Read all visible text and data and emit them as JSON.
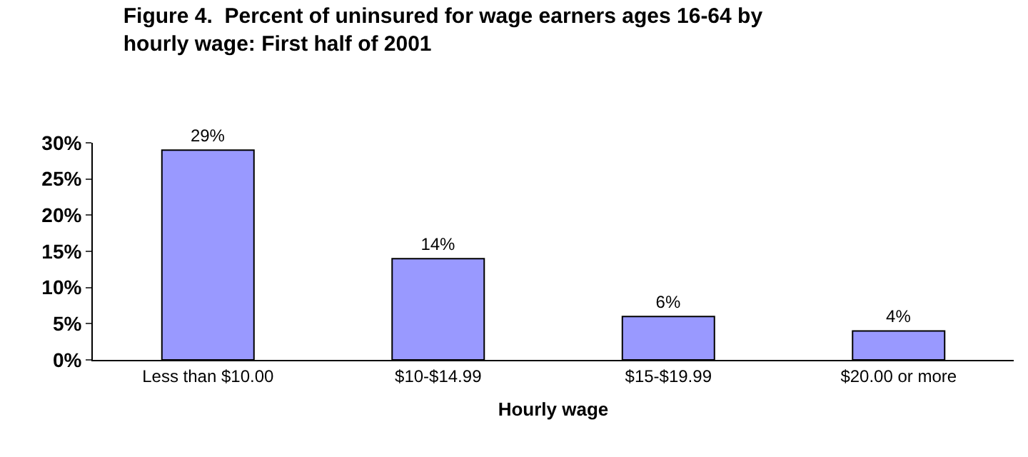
{
  "chart_data": {
    "type": "bar",
    "title": "Figure 4.  Percent of uninsured for wage earners ages 16-64 by hourly wage: First half of 2001",
    "xlabel": "Hourly wage",
    "categories": [
      "Less than $10.00",
      "$10-$14.99",
      "$15-$19.99",
      "$20.00 or more"
    ],
    "values": [
      29,
      14,
      6,
      4
    ],
    "value_labels": [
      "29%",
      "14%",
      "6%",
      "4%"
    ],
    "color": "#9999ff",
    "ylim": [
      0,
      30
    ],
    "yticks": [
      {
        "value": 0,
        "label": "0%"
      },
      {
        "value": 5,
        "label": "5%"
      },
      {
        "value": 10,
        "label": "10%"
      },
      {
        "value": 15,
        "label": "15%"
      },
      {
        "value": 20,
        "label": "20%"
      },
      {
        "value": 25,
        "label": "25%"
      },
      {
        "value": 30,
        "label": "30%"
      }
    ],
    "grid": false,
    "legend": false
  }
}
